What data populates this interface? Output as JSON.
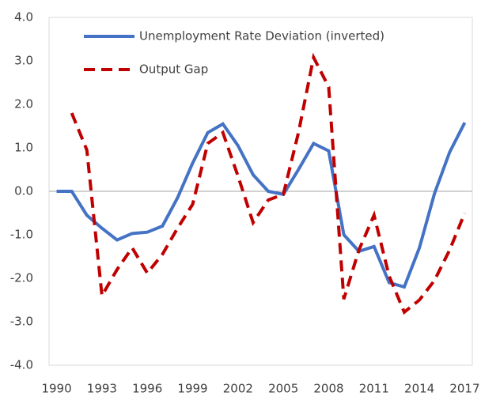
{
  "chart_data": {
    "type": "line",
    "x": [
      1990,
      1991,
      1992,
      1993,
      1994,
      1995,
      1996,
      1997,
      1998,
      1999,
      2000,
      2001,
      2002,
      2003,
      2004,
      2005,
      2006,
      2007,
      2008,
      2009,
      2010,
      2011,
      2012,
      2013,
      2014,
      2015,
      2016,
      2017
    ],
    "series": [
      {
        "name": "Unemployment Rate Deviation (inverted)",
        "color": "#4472c4",
        "dash": false,
        "values": [
          0.0,
          0.0,
          -0.55,
          -0.85,
          -1.12,
          -0.97,
          -0.94,
          -0.8,
          -0.15,
          0.65,
          1.35,
          1.55,
          1.05,
          0.38,
          0.0,
          -0.07,
          0.5,
          1.1,
          0.93,
          -1.0,
          -1.38,
          -1.27,
          -2.1,
          -2.2,
          -1.3,
          -0.05,
          0.9,
          1.58
        ]
      },
      {
        "name": "Output Gap",
        "color": "#c00000",
        "dash": true,
        "values": [
          null,
          1.8,
          0.95,
          -2.4,
          -1.8,
          -1.3,
          -1.88,
          -1.45,
          -0.85,
          -0.3,
          1.1,
          1.35,
          0.35,
          -0.72,
          -0.2,
          -0.07,
          1.35,
          3.08,
          2.4,
          -2.48,
          -1.35,
          -0.55,
          -1.95,
          -2.78,
          -2.5,
          -2.05,
          -1.35,
          -0.5
        ]
      }
    ],
    "xlim": [
      1989.5,
      2017.5
    ],
    "xticks": [
      1990,
      1993,
      1996,
      1999,
      2002,
      2005,
      2008,
      2011,
      2014,
      2017
    ],
    "ylim": [
      -4,
      4
    ],
    "yticks": [
      {
        "value": -4,
        "label": "-4.0"
      },
      {
        "value": -3,
        "label": "-3.0"
      },
      {
        "value": -2,
        "label": "-2.0"
      },
      {
        "value": -1,
        "label": "-1.0"
      },
      {
        "value": 0,
        "label": "0.0"
      },
      {
        "value": 1,
        "label": "1.0"
      },
      {
        "value": 2,
        "label": "2.0"
      },
      {
        "value": 3,
        "label": "3.0"
      },
      {
        "value": 4,
        "label": "4.0"
      }
    ]
  }
}
